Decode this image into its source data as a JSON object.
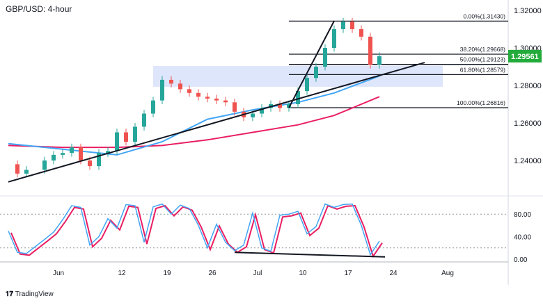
{
  "header": {
    "title": "GBP/USD: 4-hour"
  },
  "brand": {
    "logo_text": "TradingView"
  },
  "colors": {
    "up": "#26a69a",
    "down": "#ef5350",
    "ma_fast": "#42a5f5",
    "ma_slow": "#e91e63",
    "zone": "#d6e0fb",
    "badge": "#22ab3a",
    "stoch_k": "#42a5f5",
    "stoch_d": "#e91e63"
  },
  "chart_data": [
    {
      "type": "line",
      "title": "GBP/USD: 4-hour",
      "ylim": [
        1.222,
        1.326
      ],
      "y_ticks": [
        "1.32000",
        "1.30000",
        "1.28000",
        "1.26000",
        "1.24000"
      ],
      "y_tick_values": [
        1.32,
        1.3,
        1.28,
        1.26,
        1.24
      ],
      "x_ticks": [
        {
          "label": "Jun",
          "date": "Jun 1"
        },
        {
          "label": "12",
          "date": "Jun 12"
        },
        {
          "label": "19",
          "date": "Jun 19"
        },
        {
          "label": "26",
          "date": "Jun 26"
        },
        {
          "label": "Jul",
          "date": "Jul 3"
        },
        {
          "label": "10",
          "date": "Jul 10"
        },
        {
          "label": "17",
          "date": "Jul 17"
        },
        {
          "label": "24",
          "date": "Jul 24"
        },
        {
          "label": "Aug",
          "date": "Aug 1"
        }
      ],
      "current_price": "1.29561",
      "series": [
        {
          "key": "price",
          "x": [
            "May 24",
            "May 25",
            "May 26",
            "May 30",
            "May 31",
            "Jun 1",
            "Jun 2",
            "Jun 5",
            "Jun 6",
            "Jun 7",
            "Jun 8",
            "Jun 9",
            "Jun 12",
            "Jun 13",
            "Jun 14",
            "Jun 15",
            "Jun 16",
            "Jun 19",
            "Jun 20",
            "Jun 21",
            "Jun 22",
            "Jun 23",
            "Jun 26",
            "Jun 27",
            "Jun 28",
            "Jun 29",
            "Jun 30",
            "Jul 3",
            "Jul 4",
            "Jul 5",
            "Jul 6",
            "Jul 7",
            "Jul 10",
            "Jul 11",
            "Jul 12",
            "Jul 13",
            "Jul 14",
            "Jul 17",
            "Jul 18",
            "Jul 19",
            "Jul 20"
          ],
          "y": [
            1.238,
            1.233,
            1.235,
            1.24,
            1.243,
            1.244,
            1.247,
            1.24,
            1.237,
            1.244,
            1.245,
            1.255,
            1.25,
            1.258,
            1.265,
            1.272,
            1.283,
            1.281,
            1.278,
            1.276,
            1.274,
            1.273,
            1.272,
            1.271,
            1.266,
            1.263,
            1.265,
            1.268,
            1.27,
            1.268,
            1.27,
            1.277,
            1.284,
            1.29,
            1.3,
            1.31,
            1.314,
            1.31,
            1.306,
            1.291,
            1.2956
          ]
        },
        {
          "key": "ma_fast",
          "x": [
            "May 24",
            "Jun 1",
            "Jun 9",
            "Jun 16",
            "Jun 23",
            "Jun 30",
            "Jul 7",
            "Jul 13",
            "Jul 20"
          ],
          "y": [
            1.249,
            1.246,
            1.243,
            1.25,
            1.262,
            1.267,
            1.271,
            1.276,
            1.285
          ]
        },
        {
          "key": "ma_slow",
          "x": [
            "May 24",
            "Jun 1",
            "Jun 9",
            "Jun 16",
            "Jun 23",
            "Jun 30",
            "Jul 7",
            "Jul 13",
            "Jul 20"
          ],
          "y": [
            1.248,
            1.247,
            1.247,
            1.248,
            1.251,
            1.255,
            1.259,
            1.264,
            1.274
          ]
        }
      ],
      "zone": {
        "x": [
          "Jun 15",
          "Jul 31"
        ],
        "y": [
          1.2793,
          1.2904
        ]
      },
      "trendlines": [
        {
          "x": [
            "May 24",
            "Jul 27"
          ],
          "y": [
            1.2286,
            1.2922
          ]
        },
        {
          "x": [
            "Jul 6",
            "Jul 13"
          ],
          "y": [
            1.2681,
            1.3144
          ]
        }
      ],
      "fibonacci": {
        "start": "Jul 6",
        "levels": [
          {
            "label": "0.00%(1.31430)",
            "price": 1.3143
          },
          {
            "label": "38.20%(1.29668)",
            "price": 1.29668
          },
          {
            "label": "50.00%(1.29123)",
            "price": 1.29123
          },
          {
            "label": "61.80%(1.28579)",
            "price": 1.28579
          },
          {
            "label": "100.00%(1.26816)",
            "price": 1.26816
          }
        ]
      }
    },
    {
      "type": "line",
      "ylim": [
        0,
        100
      ],
      "y_ticks": [
        "80.00",
        "40.00",
        "0.00"
      ],
      "y_tick_values": [
        80,
        40,
        0
      ],
      "levels": [
        80,
        20
      ],
      "series": [
        {
          "key": "stoch_k",
          "x": [
            "May 24",
            "May 25",
            "May 26",
            "May 30",
            "May 31",
            "Jun 1",
            "Jun 2",
            "Jun 5",
            "Jun 6",
            "Jun 7",
            "Jun 8",
            "Jun 9",
            "Jun 12",
            "Jun 13",
            "Jun 14",
            "Jun 15",
            "Jun 16",
            "Jun 19",
            "Jun 20",
            "Jun 21",
            "Jun 22",
            "Jun 23",
            "Jun 26",
            "Jun 27",
            "Jun 28",
            "Jun 29",
            "Jun 30",
            "Jul 3",
            "Jul 4",
            "Jul 5",
            "Jul 6",
            "Jul 7",
            "Jul 10",
            "Jul 11",
            "Jul 12",
            "Jul 13",
            "Jul 14",
            "Jul 17",
            "Jul 18",
            "Jul 19",
            "Jul 20"
          ],
          "y": [
            50,
            12,
            10,
            35,
            48,
            70,
            95,
            92,
            25,
            40,
            72,
            55,
            97,
            95,
            30,
            93,
            98,
            80,
            96,
            90,
            60,
            20,
            62,
            30,
            15,
            25,
            82,
            20,
            14,
            78,
            80,
            85,
            45,
            58,
            98,
            92,
            97,
            98,
            60,
            8,
            32
          ]
        }
      ],
      "trendline": {
        "x": [
          "Jun 28",
          "Jul 20"
        ],
        "y": [
          12,
          4
        ]
      }
    }
  ]
}
